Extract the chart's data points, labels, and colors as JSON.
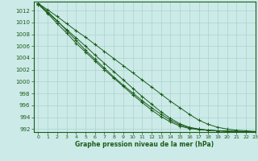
{
  "title": "Graphe pression niveau de la mer (hPa)",
  "xlim": [
    -0.5,
    23
  ],
  "ylim": [
    991.5,
    1013.5
  ],
  "xticks": [
    0,
    1,
    2,
    3,
    4,
    5,
    6,
    7,
    8,
    9,
    10,
    11,
    12,
    13,
    14,
    15,
    16,
    17,
    18,
    19,
    20,
    21,
    22,
    23
  ],
  "yticks": [
    992,
    994,
    996,
    998,
    1000,
    1002,
    1004,
    1006,
    1008,
    1010,
    1012
  ],
  "background_color": "#cceae7",
  "grid_color": "#aad4d0",
  "line_color": "#1a5c1a",
  "series": [
    [
      1013.2,
      1012.1,
      1011.0,
      1009.8,
      1008.6,
      1007.5,
      1006.3,
      1005.1,
      1003.9,
      1002.7,
      1001.5,
      1000.3,
      999.1,
      997.9,
      996.7,
      995.6,
      994.5,
      993.5,
      992.8,
      992.3,
      992.0,
      991.8,
      991.7,
      991.6
    ],
    [
      1013.0,
      1011.6,
      1010.2,
      1008.8,
      1007.4,
      1006.0,
      1004.5,
      1003.1,
      1001.7,
      1000.3,
      998.9,
      997.5,
      996.2,
      994.9,
      993.8,
      992.9,
      992.3,
      992.0,
      991.8,
      991.7,
      991.6,
      991.6,
      991.5,
      991.5
    ],
    [
      1013.1,
      1011.5,
      1009.8,
      1008.2,
      1006.5,
      1005.0,
      1003.5,
      1002.0,
      1000.6,
      999.2,
      997.8,
      996.5,
      995.2,
      994.1,
      993.2,
      992.5,
      992.1,
      991.9,
      991.8,
      991.7,
      991.6,
      991.6,
      991.5,
      991.5
    ],
    [
      1013.2,
      1011.8,
      1010.3,
      1008.6,
      1007.0,
      1005.3,
      1003.8,
      1002.3,
      1000.8,
      999.4,
      998.1,
      996.8,
      995.6,
      994.5,
      993.5,
      992.7,
      992.2,
      992.0,
      991.8,
      991.7,
      991.7,
      991.6,
      991.6,
      991.5
    ]
  ]
}
